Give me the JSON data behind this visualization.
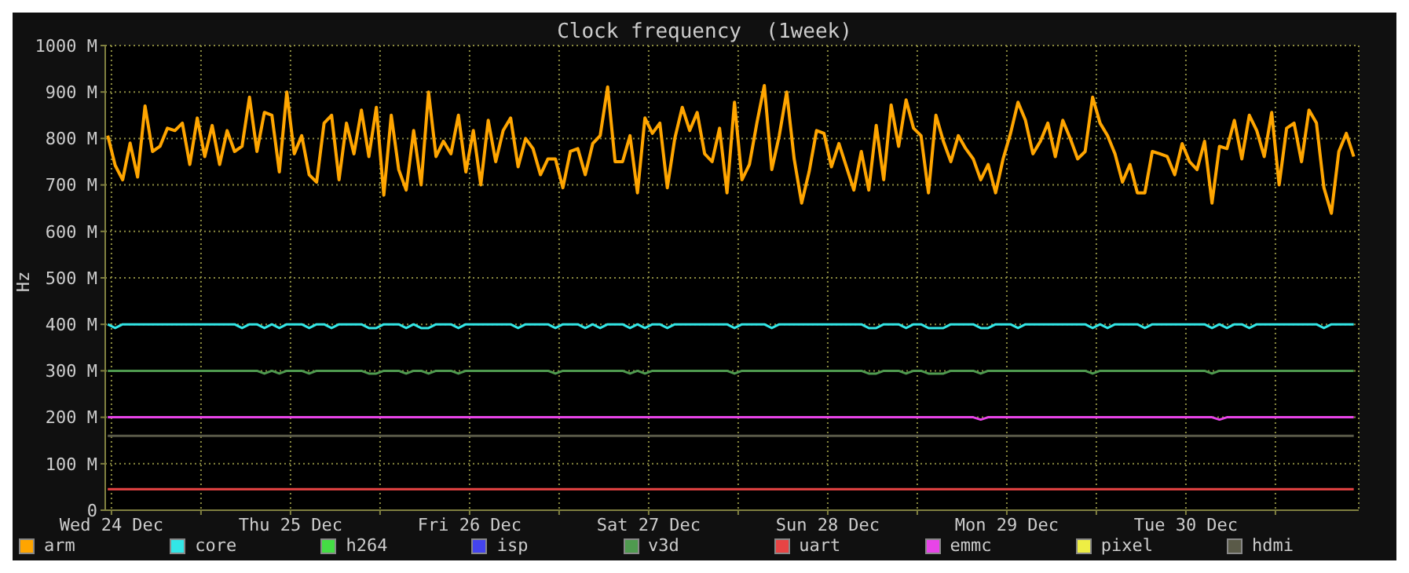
{
  "chart_data": {
    "type": "line",
    "title": "Clock frequency  (1week)",
    "ylabel": "Hz",
    "xlim": [
      "--12-24T11:10",
      "--12-31T11:10"
    ],
    "xticks": [
      {
        "value": "--12-24T12:00",
        "label": "Wed 24 Dec"
      },
      {
        "value": "--12-25T00:00",
        "label": null
      },
      {
        "value": "--12-25T12:00",
        "label": "Thu 25 Dec"
      },
      {
        "value": "--12-26T00:00",
        "label": null
      },
      {
        "value": "--12-26T12:00",
        "label": "Fri 26 Dec"
      },
      {
        "value": "--12-27T00:00",
        "label": null
      },
      {
        "value": "--12-27T12:00",
        "label": "Sat 27 Dec"
      },
      {
        "value": "--12-28T00:00",
        "label": null
      },
      {
        "value": "--12-28T12:00",
        "label": "Sun 28 Dec"
      },
      {
        "value": "--12-29T00:00",
        "label": null
      },
      {
        "value": "--12-29T12:00",
        "label": "Mon 29 Dec"
      },
      {
        "value": "--12-30T00:00",
        "label": null
      },
      {
        "value": "--12-30T12:00",
        "label": "Tue 30 Dec"
      },
      {
        "value": "--12-31T00:00",
        "label": null
      }
    ],
    "ylim": [
      0,
      1000
    ],
    "yticks": [
      0,
      {
        "value": 100,
        "label": "100 M"
      },
      {
        "value": 200,
        "label": "200 M"
      },
      {
        "value": 300,
        "label": "300 M"
      },
      {
        "value": 400,
        "label": "400 M"
      },
      {
        "value": 500,
        "label": "500 M"
      },
      {
        "value": 600,
        "label": "600 M"
      },
      {
        "value": 700,
        "label": "700 M"
      },
      {
        "value": 800,
        "label": "800 M"
      },
      {
        "value": 900,
        "label": "900 M"
      },
      {
        "value": 1000,
        "label": "1000 M"
      }
    ],
    "grid": true,
    "legend": "bottom",
    "marker": "none",
    "line_style": "solid",
    "x": [
      "--12-24T11:30",
      "--12-24T12:30",
      "--12-24T13:30",
      "--12-24T14:30",
      "--12-24T15:30",
      "--12-24T16:30",
      "--12-24T17:30",
      "--12-24T18:30",
      "--12-24T19:30",
      "--12-24T20:30",
      "--12-24T21:30",
      "--12-24T22:30",
      "--12-24T23:30",
      "--12-25T00:30",
      "--12-25T01:30",
      "--12-25T02:30",
      "--12-25T03:30",
      "--12-25T04:30",
      "--12-25T05:30",
      "--12-25T06:30",
      "--12-25T07:30",
      "--12-25T08:30",
      "--12-25T09:30",
      "--12-25T10:30",
      "--12-25T11:30",
      "--12-25T12:30",
      "--12-25T13:30",
      "--12-25T14:30",
      "--12-25T15:30",
      "--12-25T16:30",
      "--12-25T17:30",
      "--12-25T18:30",
      "--12-25T19:30",
      "--12-25T20:30",
      "--12-25T21:30",
      "--12-25T22:30",
      "--12-25T23:30",
      "--12-26T00:30",
      "--12-26T01:30",
      "--12-26T02:30",
      "--12-26T03:30",
      "--12-26T04:30",
      "--12-26T05:30",
      "--12-26T06:30",
      "--12-26T07:30",
      "--12-26T08:30",
      "--12-26T09:30",
      "--12-26T10:30",
      "--12-26T11:30",
      "--12-26T12:30",
      "--12-26T13:30",
      "--12-26T14:30",
      "--12-26T15:30",
      "--12-26T16:30",
      "--12-26T17:30",
      "--12-26T18:30",
      "--12-26T19:30",
      "--12-26T20:30",
      "--12-26T21:30",
      "--12-26T22:30",
      "--12-26T23:30",
      "--12-27T00:30",
      "--12-27T01:30",
      "--12-27T02:30",
      "--12-27T03:30",
      "--12-27T04:30",
      "--12-27T05:30",
      "--12-27T06:30",
      "--12-27T07:30",
      "--12-27T08:30",
      "--12-27T09:30",
      "--12-27T10:30",
      "--12-27T11:30",
      "--12-27T12:30",
      "--12-27T13:30",
      "--12-27T14:30",
      "--12-27T15:30",
      "--12-27T16:30",
      "--12-27T17:30",
      "--12-27T18:30",
      "--12-27T19:30",
      "--12-27T20:30",
      "--12-27T21:30",
      "--12-27T22:30",
      "--12-27T23:30",
      "--12-28T00:30",
      "--12-28T01:30",
      "--12-28T02:30",
      "--12-28T03:30",
      "--12-28T04:30",
      "--12-28T05:30",
      "--12-28T06:30",
      "--12-28T07:30",
      "--12-28T08:30",
      "--12-28T09:30",
      "--12-28T10:30",
      "--12-28T11:30",
      "--12-28T12:30",
      "--12-28T13:30",
      "--12-28T14:30",
      "--12-28T15:30",
      "--12-28T16:30",
      "--12-28T17:30",
      "--12-28T18:30",
      "--12-28T19:30",
      "--12-28T20:30",
      "--12-28T21:30",
      "--12-28T22:30",
      "--12-28T23:30",
      "--12-29T00:30",
      "--12-29T01:30",
      "--12-29T02:30",
      "--12-29T03:30",
      "--12-29T04:30",
      "--12-29T05:30",
      "--12-29T06:30",
      "--12-29T07:30",
      "--12-29T08:30",
      "--12-29T09:30",
      "--12-29T10:30",
      "--12-29T11:30",
      "--12-29T12:30",
      "--12-29T13:30",
      "--12-29T14:30",
      "--12-29T15:30",
      "--12-29T16:30",
      "--12-29T17:30",
      "--12-29T18:30",
      "--12-29T19:30",
      "--12-29T20:30",
      "--12-29T21:30",
      "--12-29T22:30",
      "--12-29T23:30",
      "--12-30T00:30",
      "--12-30T01:30",
      "--12-30T02:30",
      "--12-30T03:30",
      "--12-30T04:30",
      "--12-30T05:30",
      "--12-30T06:30",
      "--12-30T07:30",
      "--12-30T08:30",
      "--12-30T09:30",
      "--12-30T10:30",
      "--12-30T11:30",
      "--12-30T12:30",
      "--12-30T13:30",
      "--12-30T14:30",
      "--12-30T15:30",
      "--12-30T16:30",
      "--12-30T17:30",
      "--12-30T18:30",
      "--12-30T19:30",
      "--12-30T20:30",
      "--12-30T21:30",
      "--12-30T22:30",
      "--12-30T23:30",
      "--12-31T00:30",
      "--12-31T01:30",
      "--12-31T02:30",
      "--12-31T03:30",
      "--12-31T04:30",
      "--12-31T05:30",
      "--12-31T06:30",
      "--12-31T07:30",
      "--12-31T08:30",
      "--12-31T09:30",
      "--12-31T10:30"
    ],
    "series": [
      {
        "name": "arm",
        "color": "#ffa500",
        "values": [
          806,
          742,
          711,
          790,
          717,
          870,
          772,
          783,
          822,
          817,
          833,
          744,
          844,
          761,
          828,
          744,
          817,
          772,
          783,
          889,
          772,
          856,
          850,
          728,
          900,
          767,
          806,
          722,
          706,
          833,
          850,
          711,
          833,
          767,
          861,
          761,
          867,
          678,
          850,
          733,
          689,
          817,
          700,
          900,
          761,
          794,
          767,
          850,
          728,
          817,
          700,
          839,
          750,
          817,
          844,
          739,
          800,
          778,
          722,
          756,
          756,
          694,
          772,
          778,
          722,
          789,
          806,
          911,
          750,
          750,
          806,
          683,
          844,
          811,
          833,
          694,
          800,
          867,
          817,
          856,
          767,
          750,
          822,
          683,
          878,
          711,
          744,
          833,
          914,
          733,
          806,
          900,
          756,
          661,
          728,
          817,
          811,
          739,
          789,
          739,
          689,
          772,
          689,
          828,
          711,
          872,
          783,
          883,
          822,
          806,
          683,
          850,
          794,
          750,
          806,
          778,
          756,
          711,
          744,
          683,
          756,
          811,
          878,
          839,
          767,
          794,
          833,
          761,
          839,
          800,
          756,
          772,
          889,
          833,
          806,
          767,
          706,
          744,
          683,
          683,
          772,
          767,
          761,
          722,
          789,
          750,
          733,
          794,
          661,
          783,
          778,
          839,
          756,
          850,
          817,
          761,
          856,
          700,
          822,
          833,
          750,
          861,
          833,
          694,
          639,
          772,
          811,
          761
        ]
      },
      {
        "name": "core",
        "color": "#33e6e6",
        "values": [
          400,
          392,
          400,
          400,
          400,
          400,
          400,
          400,
          400,
          400,
          400,
          400,
          400,
          400,
          400,
          400,
          400,
          400,
          392,
          400,
          400,
          392,
          400,
          392,
          400,
          400,
          400,
          392,
          400,
          400,
          392,
          400,
          400,
          400,
          400,
          392,
          392,
          400,
          400,
          400,
          392,
          400,
          392,
          392,
          400,
          400,
          400,
          392,
          400,
          400,
          400,
          400,
          400,
          400,
          400,
          392,
          400,
          400,
          400,
          400,
          392,
          400,
          400,
          400,
          392,
          400,
          392,
          400,
          400,
          400,
          392,
          400,
          392,
          400,
          400,
          392,
          400,
          400,
          400,
          400,
          400,
          400,
          400,
          400,
          392,
          400,
          400,
          400,
          400,
          392,
          400,
          400,
          400,
          400,
          400,
          400,
          400,
          400,
          400,
          400,
          400,
          400,
          392,
          392,
          400,
          400,
          400,
          392,
          400,
          400,
          392,
          392,
          392,
          400,
          400,
          400,
          400,
          392,
          392,
          400,
          400,
          400,
          392,
          400,
          400,
          400,
          400,
          400,
          400,
          400,
          400,
          400,
          392,
          400,
          392,
          400,
          400,
          400,
          400,
          392,
          400,
          400,
          400,
          400,
          400,
          400,
          400,
          400,
          392,
          400,
          392,
          400,
          400,
          392,
          400,
          400,
          400,
          400,
          400,
          400,
          400,
          400,
          400,
          392,
          400,
          400,
          400,
          400
        ]
      },
      {
        "name": "h264",
        "color": "#44dd44",
        "values": [
          null,
          null,
          null,
          null,
          null,
          null,
          null,
          null,
          null,
          null,
          null,
          null,
          null,
          null,
          null,
          null,
          null,
          null,
          null,
          null,
          null,
          null,
          null,
          null,
          null,
          null,
          null,
          null,
          null,
          null,
          null,
          null,
          null,
          null,
          null,
          null,
          null,
          null,
          null,
          null,
          null,
          null,
          null,
          null,
          null,
          null,
          null,
          null,
          null,
          null,
          null,
          null,
          null,
          null,
          null,
          null,
          null,
          null,
          null,
          null,
          null,
          null,
          null,
          null,
          null,
          null,
          null,
          null,
          null,
          null,
          null,
          null,
          null,
          null,
          null,
          null,
          null,
          null,
          null,
          null,
          null,
          null,
          null,
          null,
          null,
          null,
          null,
          null,
          null,
          null,
          null,
          null,
          null,
          null,
          null,
          null,
          null,
          null,
          null,
          null,
          null,
          null,
          null,
          null,
          null,
          null,
          null,
          null,
          null,
          null,
          null,
          null,
          null,
          null,
          null,
          null,
          null,
          null,
          null,
          null,
          null,
          null,
          null,
          null,
          null,
          null,
          null,
          null,
          null,
          null,
          null,
          null,
          null,
          null,
          null,
          null,
          null,
          null,
          null,
          null,
          null,
          null,
          null,
          null,
          null,
          null,
          null,
          null,
          null,
          null,
          null,
          null,
          null,
          null,
          null,
          null,
          null,
          null,
          null,
          null,
          null,
          null,
          null,
          null,
          null,
          null,
          null,
          null
        ]
      },
      {
        "name": "isp",
        "color": "#4444ee",
        "values": [
          null,
          null,
          null,
          null,
          null,
          null,
          null,
          null,
          null,
          null,
          null,
          null,
          null,
          null,
          null,
          null,
          null,
          null,
          null,
          null,
          null,
          null,
          null,
          null,
          null,
          null,
          null,
          null,
          null,
          null,
          null,
          null,
          null,
          null,
          null,
          null,
          null,
          null,
          null,
          null,
          null,
          null,
          null,
          null,
          null,
          null,
          null,
          null,
          null,
          null,
          null,
          null,
          null,
          null,
          null,
          null,
          null,
          null,
          null,
          null,
          null,
          null,
          null,
          null,
          null,
          null,
          null,
          null,
          null,
          null,
          null,
          null,
          null,
          null,
          null,
          null,
          null,
          null,
          null,
          null,
          null,
          null,
          null,
          null,
          null,
          null,
          null,
          null,
          null,
          null,
          null,
          null,
          null,
          null,
          null,
          null,
          null,
          null,
          null,
          null,
          null,
          null,
          null,
          null,
          null,
          null,
          null,
          null,
          null,
          null,
          null,
          null,
          null,
          null,
          null,
          null,
          null,
          null,
          null,
          null,
          null,
          null,
          null,
          null,
          null,
          null,
          null,
          null,
          null,
          null,
          null,
          null,
          null,
          null,
          null,
          null,
          null,
          null,
          null,
          null,
          null,
          null,
          null,
          null,
          null,
          null,
          null,
          null,
          null,
          null,
          null,
          null,
          null,
          null,
          null,
          null,
          null,
          null,
          null,
          null,
          null,
          null,
          null,
          null,
          null,
          null,
          null,
          null
        ]
      },
      {
        "name": "v3d",
        "color": "#4f9a4f",
        "values": [
          300,
          300,
          300,
          300,
          300,
          300,
          300,
          300,
          300,
          300,
          300,
          300,
          300,
          300,
          300,
          300,
          300,
          300,
          300,
          300,
          300,
          294,
          300,
          294,
          300,
          300,
          300,
          294,
          300,
          300,
          300,
          300,
          300,
          300,
          300,
          294,
          294,
          300,
          300,
          300,
          294,
          300,
          300,
          294,
          300,
          300,
          300,
          294,
          300,
          300,
          300,
          300,
          300,
          300,
          300,
          300,
          300,
          300,
          300,
          300,
          294,
          300,
          300,
          300,
          300,
          300,
          300,
          300,
          300,
          300,
          294,
          300,
          294,
          300,
          300,
          300,
          300,
          300,
          300,
          300,
          300,
          300,
          300,
          300,
          294,
          300,
          300,
          300,
          300,
          300,
          300,
          300,
          300,
          300,
          300,
          300,
          300,
          300,
          300,
          300,
          300,
          300,
          294,
          294,
          300,
          300,
          300,
          294,
          300,
          300,
          294,
          294,
          294,
          300,
          300,
          300,
          300,
          294,
          300,
          300,
          300,
          300,
          300,
          300,
          300,
          300,
          300,
          300,
          300,
          300,
          300,
          300,
          294,
          300,
          300,
          300,
          300,
          300,
          300,
          300,
          300,
          300,
          300,
          300,
          300,
          300,
          300,
          300,
          294,
          300,
          300,
          300,
          300,
          300,
          300,
          300,
          300,
          300,
          300,
          300,
          300,
          300,
          300,
          300,
          300,
          300,
          300,
          300
        ]
      },
      {
        "name": "uart",
        "color": "#e84444",
        "x": [
          "--12-24T11:30",
          "--12-31T10:30"
        ],
        "values": [
          45,
          45
        ]
      },
      {
        "name": "emmc",
        "color": "#e844e8",
        "values": [
          200,
          200,
          200,
          200,
          200,
          200,
          200,
          200,
          200,
          200,
          200,
          200,
          200,
          200,
          200,
          200,
          200,
          200,
          200,
          200,
          200,
          200,
          200,
          200,
          200,
          200,
          200,
          200,
          200,
          200,
          200,
          200,
          200,
          200,
          200,
          200,
          200,
          200,
          200,
          200,
          200,
          200,
          200,
          200,
          200,
          200,
          200,
          200,
          200,
          200,
          200,
          200,
          200,
          200,
          200,
          200,
          200,
          200,
          200,
          200,
          200,
          200,
          200,
          200,
          200,
          200,
          200,
          200,
          200,
          200,
          200,
          200,
          200,
          200,
          200,
          200,
          200,
          200,
          200,
          200,
          200,
          200,
          200,
          200,
          200,
          200,
          200,
          200,
          200,
          200,
          200,
          200,
          200,
          200,
          200,
          200,
          200,
          200,
          200,
          200,
          200,
          200,
          200,
          200,
          200,
          200,
          200,
          200,
          200,
          200,
          200,
          200,
          200,
          200,
          200,
          200,
          200,
          195,
          200,
          200,
          200,
          200,
          200,
          200,
          200,
          200,
          200,
          200,
          200,
          200,
          200,
          200,
          200,
          200,
          200,
          200,
          200,
          200,
          200,
          200,
          200,
          200,
          200,
          200,
          200,
          200,
          200,
          200,
          200,
          195,
          200,
          200,
          200,
          200,
          200,
          200,
          200,
          200,
          200,
          200,
          200,
          200,
          200,
          200,
          200,
          200,
          200,
          200
        ]
      },
      {
        "name": "pixel",
        "color": "#eeee44",
        "values": [
          null,
          null,
          null,
          null,
          null,
          null,
          null,
          null,
          null,
          null,
          null,
          null,
          null,
          null,
          null,
          null,
          null,
          null,
          null,
          null,
          null,
          null,
          null,
          null,
          null,
          null,
          null,
          null,
          null,
          null,
          null,
          null,
          null,
          null,
          null,
          null,
          null,
          null,
          null,
          null,
          null,
          null,
          null,
          null,
          null,
          null,
          null,
          null,
          null,
          null,
          null,
          null,
          null,
          null,
          null,
          null,
          null,
          null,
          null,
          null,
          null,
          null,
          null,
          null,
          null,
          null,
          null,
          null,
          null,
          null,
          null,
          null,
          null,
          null,
          null,
          null,
          null,
          null,
          null,
          null,
          null,
          null,
          null,
          null,
          null,
          null,
          null,
          null,
          null,
          null,
          null,
          null,
          null,
          null,
          null,
          null,
          null,
          null,
          null,
          null,
          null,
          null,
          null,
          null,
          null,
          null,
          null,
          null,
          null,
          null,
          null,
          null,
          null,
          null,
          null,
          null,
          null,
          null,
          null,
          null,
          null,
          null,
          null,
          null,
          null,
          null,
          null,
          null,
          null,
          null,
          null,
          null,
          null,
          null,
          null,
          null,
          null,
          null,
          null,
          null,
          null,
          null,
          null,
          null,
          null,
          null,
          null,
          null,
          null,
          null,
          null,
          null,
          null,
          null,
          null,
          null,
          null,
          null,
          null,
          null,
          null,
          null,
          null,
          null,
          null,
          null,
          null,
          null
        ]
      },
      {
        "name": "hdmi",
        "color": "#5a5a48",
        "x": [
          "--12-24T11:30",
          "--12-31T10:30"
        ],
        "values": [
          160,
          160
        ]
      }
    ]
  }
}
